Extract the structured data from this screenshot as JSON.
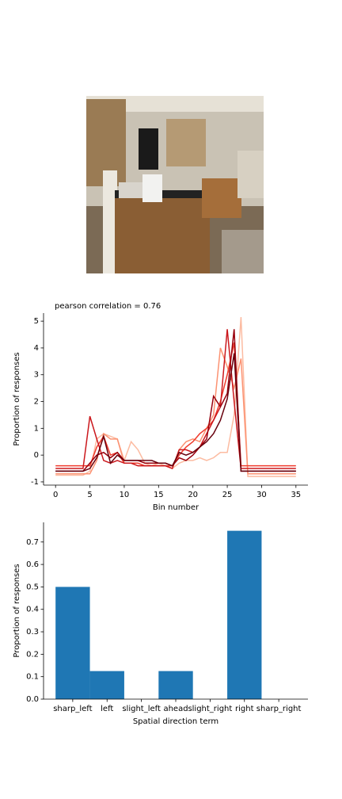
{
  "chart_data": [
    {
      "type": "line",
      "title": "pearson correlation = 0.76",
      "x_label": "Bin number",
      "y_label": "Proportion of responses",
      "x": [
        0,
        1,
        2,
        3,
        4,
        5,
        6,
        7,
        8,
        9,
        10,
        11,
        12,
        13,
        14,
        15,
        16,
        17,
        18,
        19,
        20,
        21,
        22,
        23,
        24,
        25,
        26,
        27,
        28,
        29,
        30,
        31,
        32,
        33,
        34,
        35
      ],
      "xlim": [
        -1.75,
        36.75
      ],
      "xticks": [
        0,
        5,
        10,
        15,
        20,
        25,
        30,
        35
      ],
      "ylim": [
        -1.12,
        5.3
      ],
      "yticks": [
        -1,
        0,
        1,
        2,
        3,
        4,
        5
      ],
      "series": [
        {
          "color": "#fcbba1",
          "values": [
            -0.75,
            -0.75,
            -0.75,
            -0.75,
            -0.75,
            -0.6,
            0.6,
            0.8,
            0.7,
            0.6,
            -0.2,
            0.5,
            0.2,
            -0.3,
            -0.4,
            -0.3,
            -0.4,
            -0.5,
            -0.3,
            -0.2,
            -0.2,
            -0.1,
            -0.2,
            -0.1,
            0.1,
            0.1,
            1.5,
            5.15,
            -0.8,
            -0.8,
            -0.8,
            -0.8,
            -0.8,
            -0.8,
            -0.8,
            -0.8
          ]
        },
        {
          "color": "#fc9272",
          "values": [
            -0.7,
            -0.7,
            -0.7,
            -0.7,
            -0.7,
            -0.7,
            -0.2,
            0.8,
            0.6,
            0.6,
            -0.3,
            -0.3,
            -0.4,
            -0.4,
            -0.4,
            -0.4,
            -0.4,
            -0.5,
            0.2,
            0.5,
            0.6,
            0.5,
            1.0,
            1.5,
            4.0,
            3.3,
            2.5,
            3.6,
            -0.7,
            -0.7,
            -0.7,
            -0.7,
            -0.7,
            -0.7,
            -0.7,
            -0.7
          ]
        },
        {
          "color": "#ef3b2c",
          "values": [
            -0.4,
            -0.4,
            -0.4,
            -0.4,
            -0.4,
            -0.4,
            0.3,
            0.7,
            0.0,
            0.1,
            -0.3,
            -0.3,
            -0.3,
            -0.4,
            -0.4,
            -0.4,
            -0.4,
            -0.4,
            0.0,
            0.3,
            0.5,
            0.8,
            1.0,
            1.3,
            2.0,
            3.0,
            4.2,
            -0.4,
            -0.4,
            -0.4,
            -0.4,
            -0.4,
            -0.4,
            -0.4,
            -0.4,
            -0.4
          ]
        },
        {
          "color": "#cb181d",
          "values": [
            -0.5,
            -0.5,
            -0.5,
            -0.5,
            -0.5,
            1.45,
            0.6,
            -0.2,
            -0.3,
            -0.2,
            -0.3,
            -0.3,
            -0.4,
            -0.4,
            -0.4,
            -0.4,
            -0.4,
            -0.5,
            0.2,
            0.2,
            0.1,
            0.3,
            0.8,
            1.3,
            1.8,
            4.7,
            2.0,
            -0.5,
            -0.5,
            -0.5,
            -0.5,
            -0.5,
            -0.5,
            -0.5,
            -0.5,
            -0.5
          ]
        },
        {
          "color": "#99000d",
          "values": [
            -0.6,
            -0.6,
            -0.6,
            -0.6,
            -0.6,
            -0.3,
            0.0,
            0.1,
            -0.1,
            0.1,
            -0.2,
            -0.2,
            -0.2,
            -0.3,
            -0.3,
            -0.3,
            -0.3,
            -0.4,
            -0.1,
            -0.2,
            0.0,
            0.3,
            0.6,
            2.2,
            1.8,
            2.3,
            4.7,
            -0.6,
            -0.6,
            -0.6,
            -0.6,
            -0.6,
            -0.6,
            -0.6,
            -0.6,
            -0.6
          ]
        },
        {
          "color": "#67000d",
          "values": [
            -0.6,
            -0.6,
            -0.6,
            -0.6,
            -0.6,
            -0.5,
            -0.1,
            0.7,
            -0.3,
            0.0,
            -0.2,
            -0.2,
            -0.2,
            -0.2,
            -0.2,
            -0.3,
            -0.3,
            -0.4,
            0.1,
            0.0,
            0.1,
            0.3,
            0.5,
            0.8,
            1.3,
            2.1,
            3.8,
            -0.6,
            -0.6,
            -0.6,
            -0.6,
            -0.6,
            -0.6,
            -0.6,
            -0.6,
            -0.6
          ]
        }
      ]
    },
    {
      "type": "bar",
      "x_label": "Spatial direction term",
      "y_label": "Proportion of responses",
      "categories": [
        "sharp_left",
        "left",
        "slight_left",
        "ahead",
        "slight_right",
        "right",
        "sharp_right"
      ],
      "values": [
        0.5,
        0.125,
        0,
        0.125,
        0,
        0.75,
        0
      ],
      "color": "#1f77b4",
      "ylim": [
        0,
        0.7875
      ],
      "yticks": [
        0.0,
        0.1,
        0.2,
        0.3,
        0.4,
        0.5,
        0.6,
        0.7
      ]
    }
  ]
}
